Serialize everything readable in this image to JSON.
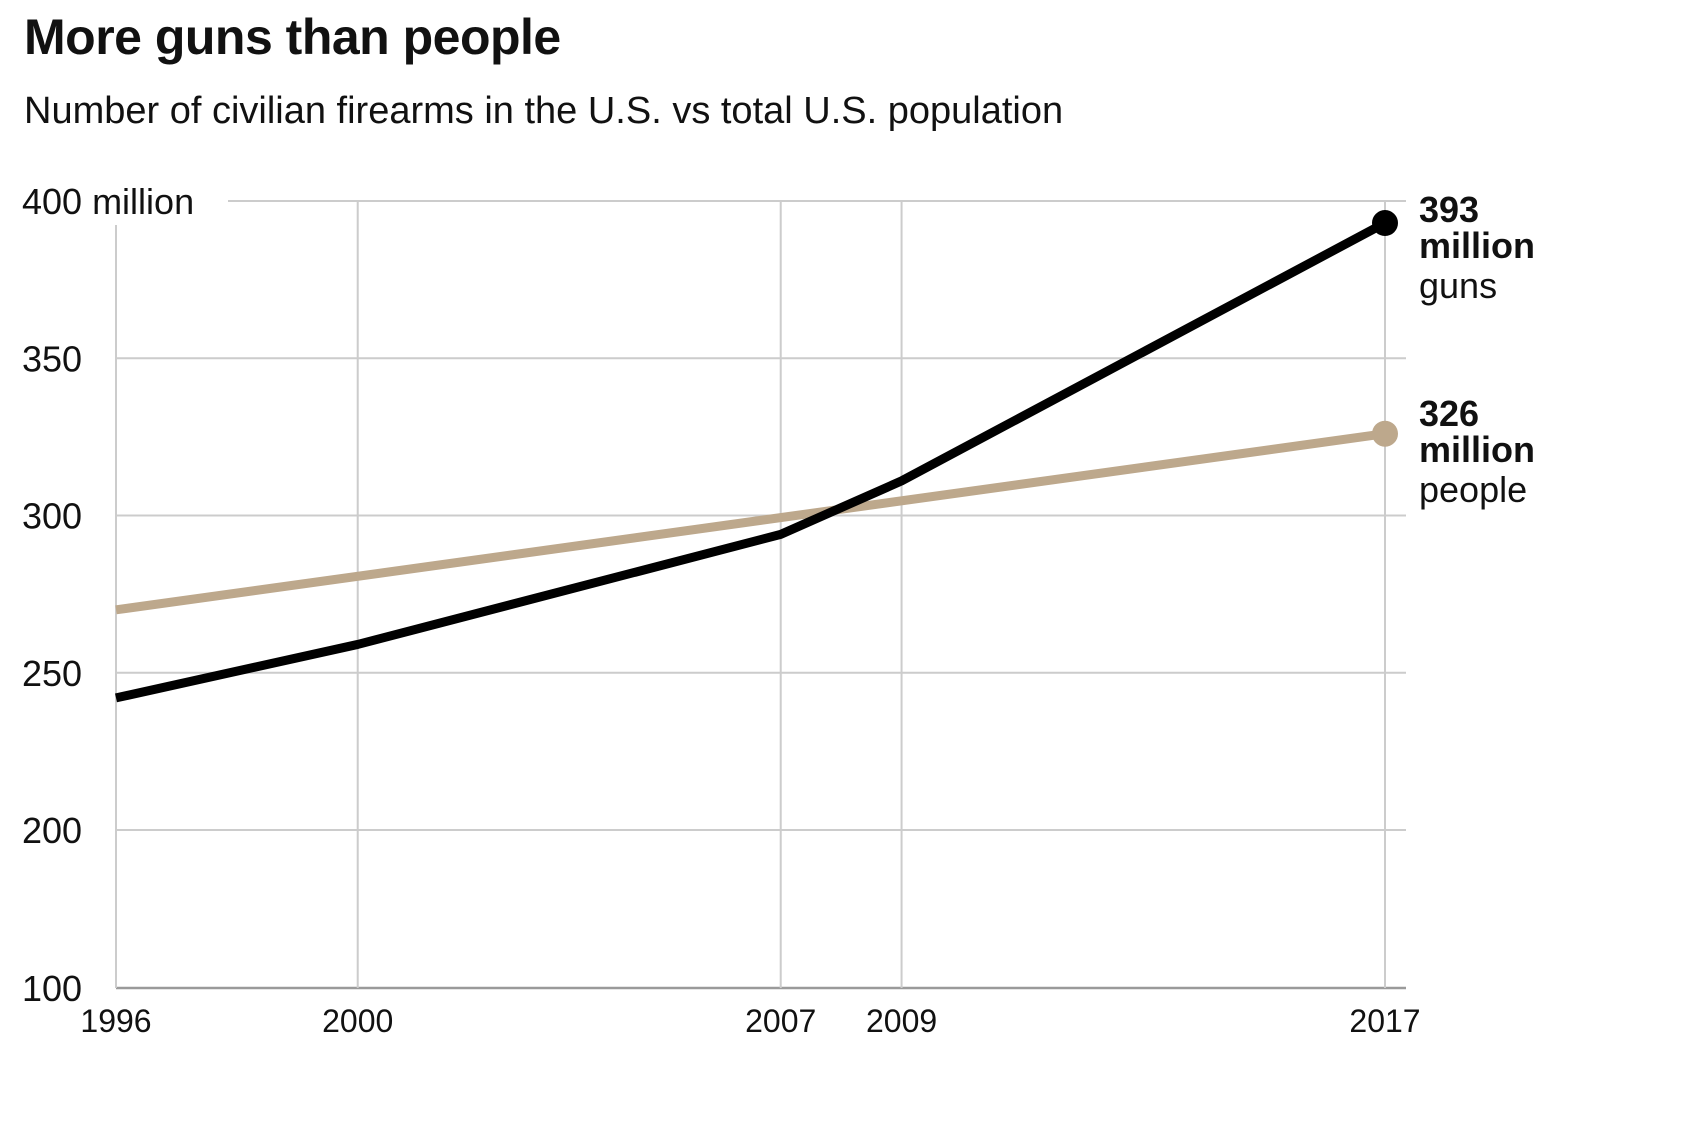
{
  "chart_data": {
    "type": "line",
    "title": "More guns than people",
    "subtitle": "Number of civilian firearms in the U.S. vs total U.S. population",
    "xlabel": "",
    "ylabel": "",
    "x": [
      1996,
      2000,
      2007,
      2009,
      2017
    ],
    "x_ticks": [
      "1996",
      "2000",
      "2007",
      "2009",
      "2017"
    ],
    "y_ticks": [
      {
        "value": 100,
        "label": "100"
      },
      {
        "value": 200,
        "label": "200"
      },
      {
        "value": 250,
        "label": "250"
      },
      {
        "value": 300,
        "label": "300"
      },
      {
        "value": 350,
        "label": "350"
      },
      {
        "value": 400,
        "label": "400 million"
      }
    ],
    "ylim": [
      100,
      400
    ],
    "y_scale": "piecewise (100–200 compressed, 200–400 linear)",
    "grid": true,
    "series": [
      {
        "key": "guns",
        "color": "#000000",
        "points": [
          {
            "x": 1996,
            "y": 242
          },
          {
            "x": 2000,
            "y": 259
          },
          {
            "x": 2007,
            "y": 294
          },
          {
            "x": 2009,
            "y": 311
          },
          {
            "x": 2017,
            "y": 393
          }
        ],
        "end_value": "393",
        "end_unit": "million",
        "end_label": "guns"
      },
      {
        "key": "people",
        "color": "#bda88c",
        "points": [
          {
            "x": 1996,
            "y": 270
          },
          {
            "x": 2017,
            "y": 326
          }
        ],
        "end_value": "326",
        "end_unit": "million",
        "end_label": "people"
      }
    ]
  }
}
